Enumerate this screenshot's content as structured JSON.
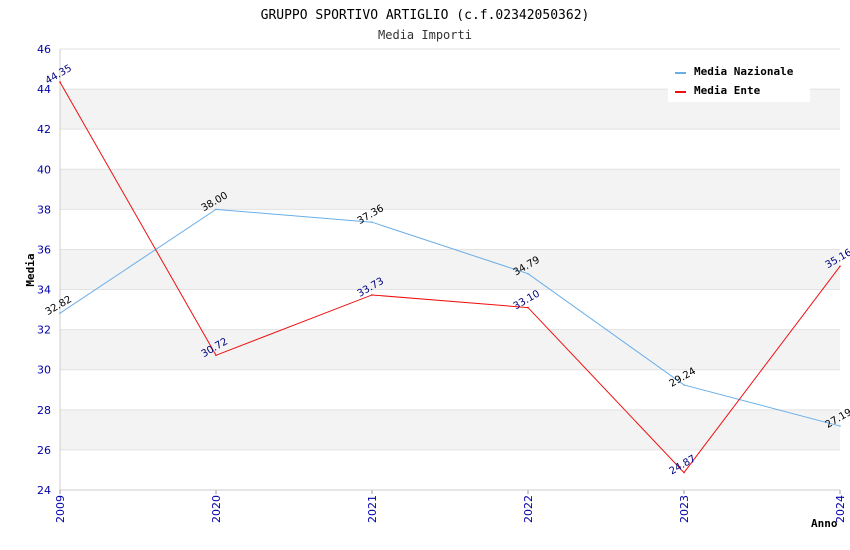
{
  "chart_data": {
    "type": "line",
    "title": "GRUPPO SPORTIVO ARTIGLIO (c.f.02342050362)",
    "subtitle": "Media Importi",
    "xlabel": "Anno",
    "ylabel": "Media",
    "categories": [
      "2009",
      "2020",
      "2021",
      "2022",
      "2023",
      "2024"
    ],
    "ylim": [
      24,
      46
    ],
    "yticks": [
      24,
      26,
      28,
      30,
      32,
      34,
      36,
      38,
      40,
      42,
      44,
      46
    ],
    "grid": "alternating horizontal bands",
    "legend_position": "top-right",
    "series": [
      {
        "name": "Media Nazionale",
        "color": "#6aaee8",
        "label_color": "#000000",
        "values": [
          32.82,
          38.0,
          37.36,
          34.79,
          29.24,
          27.19
        ],
        "labels": [
          "32.82",
          "38.00",
          "37.36",
          "34.79",
          "29.24",
          "27.19"
        ]
      },
      {
        "name": "Media Ente",
        "color": "#ee1111",
        "label_color": "#000080",
        "values": [
          44.35,
          30.72,
          33.73,
          33.1,
          24.87,
          35.16
        ],
        "labels": [
          "44.35",
          "30.72",
          "33.73",
          "33.10",
          "24.87",
          "35.16"
        ]
      }
    ]
  }
}
